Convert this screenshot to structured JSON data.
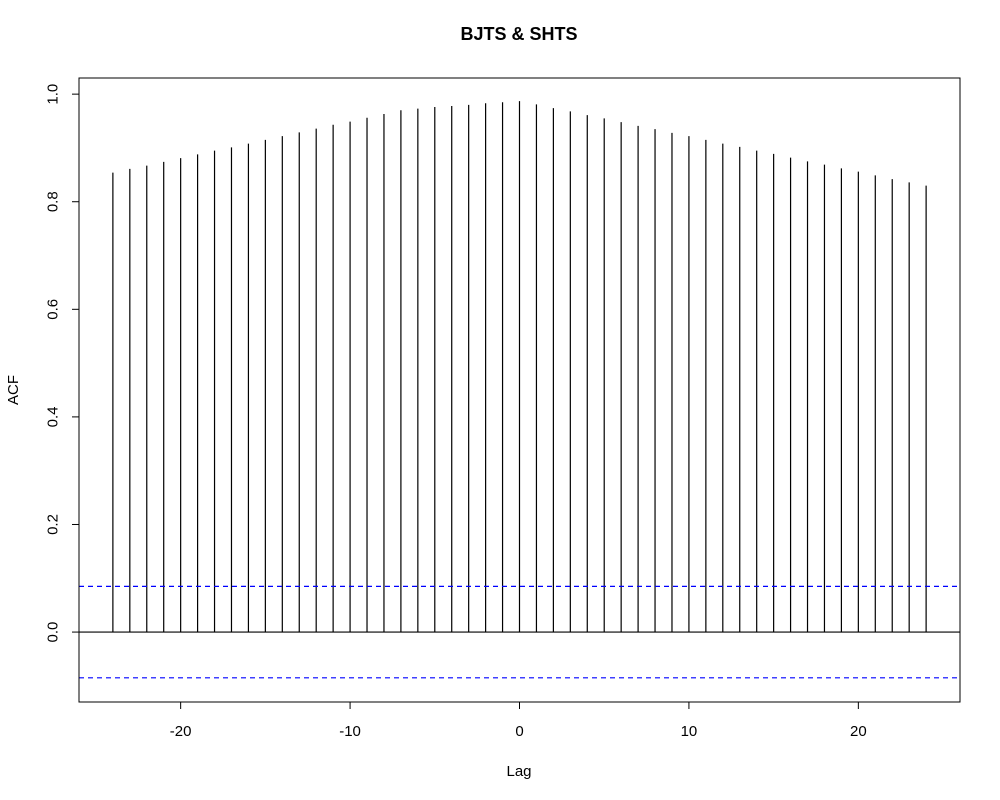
{
  "chart_data": {
    "type": "bar",
    "title": "BJTS & SHTS",
    "xlabel": "Lag",
    "ylabel": "ACF",
    "xlim": [
      -26,
      26
    ],
    "ylim": [
      -0.13,
      1.03
    ],
    "x_ticks": [
      -20,
      -10,
      0,
      10,
      20
    ],
    "x_tick_labels": [
      "-20",
      "-10",
      "0",
      "10",
      "20"
    ],
    "y_ticks": [
      0.0,
      0.2,
      0.4,
      0.6,
      0.8,
      1.0
    ],
    "y_tick_labels": [
      "0.0",
      "0.2",
      "0.4",
      "0.6",
      "0.8",
      "1.0"
    ],
    "lags": [
      -24,
      -23,
      -22,
      -21,
      -20,
      -19,
      -18,
      -17,
      -16,
      -15,
      -14,
      -13,
      -12,
      -11,
      -10,
      -9,
      -8,
      -7,
      -6,
      -5,
      -4,
      -3,
      -2,
      -1,
      0,
      1,
      2,
      3,
      4,
      5,
      6,
      7,
      8,
      9,
      10,
      11,
      12,
      13,
      14,
      15,
      16,
      17,
      18,
      19,
      20,
      21,
      22,
      23,
      24
    ],
    "acf": [
      0.854,
      0.861,
      0.867,
      0.874,
      0.881,
      0.888,
      0.895,
      0.901,
      0.908,
      0.915,
      0.922,
      0.929,
      0.936,
      0.943,
      0.949,
      0.956,
      0.963,
      0.97,
      0.973,
      0.976,
      0.978,
      0.98,
      0.983,
      0.985,
      0.987,
      0.981,
      0.974,
      0.968,
      0.961,
      0.955,
      0.948,
      0.941,
      0.935,
      0.928,
      0.922,
      0.915,
      0.908,
      0.902,
      0.895,
      0.889,
      0.882,
      0.875,
      0.869,
      0.862,
      0.856,
      0.849,
      0.842,
      0.836,
      0.83
    ],
    "confidence_bound": 0.085,
    "zero_line": true,
    "grid": false,
    "colors": {
      "bars": "#000000",
      "bounds": "#0000FF",
      "zero_line": "#000000"
    }
  }
}
